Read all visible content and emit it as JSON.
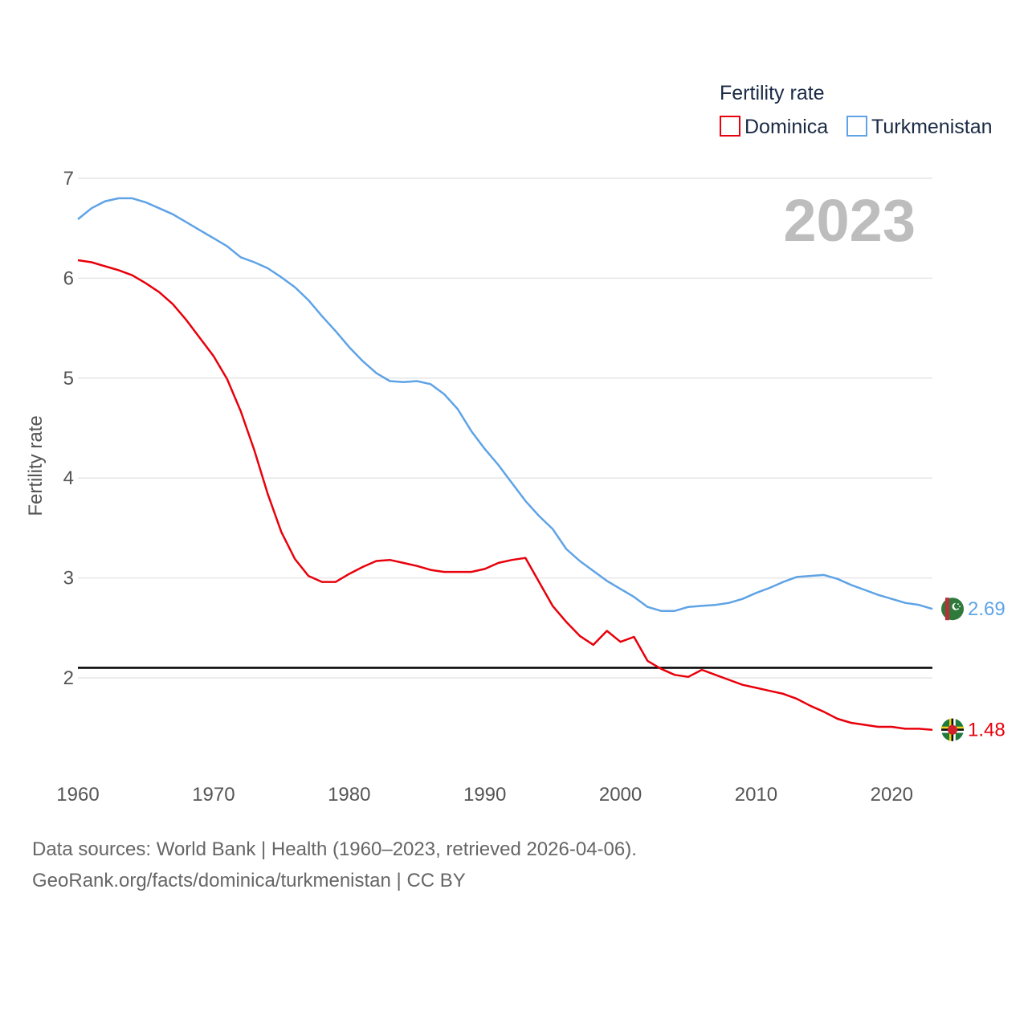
{
  "chart_data": {
    "type": "line",
    "ylabel": "Fertility rate",
    "xlabel": "",
    "ylim": [
      1.0,
      7.0
    ],
    "xlim": [
      1960,
      2023
    ],
    "yticks": [
      2,
      3,
      4,
      5,
      6,
      7
    ],
    "yticks_labels": [
      "2",
      "3",
      "4",
      "5",
      "6",
      "7"
    ],
    "xticks": [
      1960,
      1970,
      1980,
      1990,
      2000,
      2010,
      2020
    ],
    "xticks_labels": [
      "1960",
      "1970",
      "1980",
      "1990",
      "2000",
      "2010",
      "2020"
    ],
    "grid": "horizontal",
    "legend_title": "Fertility rate",
    "legend_placement": "top-right",
    "year_stamp": "2023",
    "reference_line": {
      "y": 2.1,
      "color": "#000000"
    },
    "series": [
      {
        "name": "Dominica",
        "color": "#e8000b",
        "end_label": "1.48",
        "end_icon": "dominica-flag-icon",
        "x": [
          1960,
          1961,
          1962,
          1963,
          1964,
          1965,
          1966,
          1967,
          1968,
          1969,
          1970,
          1971,
          1972,
          1973,
          1974,
          1975,
          1976,
          1977,
          1978,
          1979,
          1980,
          1981,
          1982,
          1983,
          1984,
          1985,
          1986,
          1987,
          1988,
          1989,
          1990,
          1991,
          1992,
          1993,
          1994,
          1995,
          1996,
          1997,
          1998,
          1999,
          2000,
          2001,
          2002,
          2003,
          2004,
          2005,
          2006,
          2007,
          2008,
          2009,
          2010,
          2011,
          2012,
          2013,
          2014,
          2015,
          2016,
          2017,
          2018,
          2019,
          2020,
          2021,
          2022,
          2023
        ],
        "values": [
          6.18,
          6.16,
          6.12,
          6.08,
          6.03,
          5.95,
          5.86,
          5.74,
          5.58,
          5.4,
          5.22,
          4.99,
          4.67,
          4.28,
          3.84,
          3.46,
          3.19,
          3.02,
          2.96,
          2.96,
          3.04,
          3.11,
          3.17,
          3.18,
          3.15,
          3.12,
          3.08,
          3.06,
          3.06,
          3.06,
          3.09,
          3.15,
          3.18,
          3.2,
          2.96,
          2.72,
          2.56,
          2.42,
          2.33,
          2.47,
          2.36,
          2.41,
          2.17,
          2.09,
          2.03,
          2.01,
          2.08,
          2.03,
          1.98,
          1.93,
          1.9,
          1.87,
          1.84,
          1.79,
          1.72,
          1.66,
          1.59,
          1.55,
          1.53,
          1.51,
          1.51,
          1.49,
          1.49,
          1.48
        ]
      },
      {
        "name": "Turkmenistan",
        "color": "#5ea3e6",
        "end_label": "2.69",
        "end_icon": "turkmenistan-flag-icon",
        "x": [
          1960,
          1961,
          1962,
          1963,
          1964,
          1965,
          1966,
          1967,
          1968,
          1969,
          1970,
          1971,
          1972,
          1973,
          1974,
          1975,
          1976,
          1977,
          1978,
          1979,
          1980,
          1981,
          1982,
          1983,
          1984,
          1985,
          1986,
          1987,
          1988,
          1989,
          1990,
          1991,
          1992,
          1993,
          1994,
          1995,
          1996,
          1997,
          1998,
          1999,
          2000,
          2001,
          2002,
          2003,
          2004,
          2005,
          2006,
          2007,
          2008,
          2009,
          2010,
          2011,
          2012,
          2013,
          2014,
          2015,
          2016,
          2017,
          2018,
          2019,
          2020,
          2021,
          2022,
          2023
        ],
        "values": [
          6.59,
          6.7,
          6.77,
          6.8,
          6.8,
          6.76,
          6.7,
          6.64,
          6.56,
          6.48,
          6.4,
          6.32,
          6.21,
          6.16,
          6.1,
          6.01,
          5.91,
          5.78,
          5.62,
          5.47,
          5.31,
          5.17,
          5.05,
          4.97,
          4.96,
          4.97,
          4.94,
          4.84,
          4.69,
          4.47,
          4.29,
          4.13,
          3.95,
          3.77,
          3.62,
          3.49,
          3.29,
          3.17,
          3.07,
          2.97,
          2.89,
          2.81,
          2.71,
          2.67,
          2.67,
          2.71,
          2.72,
          2.73,
          2.75,
          2.79,
          2.85,
          2.9,
          2.96,
          3.01,
          3.02,
          3.03,
          2.99,
          2.93,
          2.88,
          2.83,
          2.79,
          2.75,
          2.73,
          2.69
        ]
      }
    ]
  },
  "footer": {
    "sources": "Data sources: World Bank | Health (1960–2023, retrieved 2026-04-06).",
    "attribution": "GeoRank.org/facts/dominica/turkmenistan | CC BY"
  }
}
